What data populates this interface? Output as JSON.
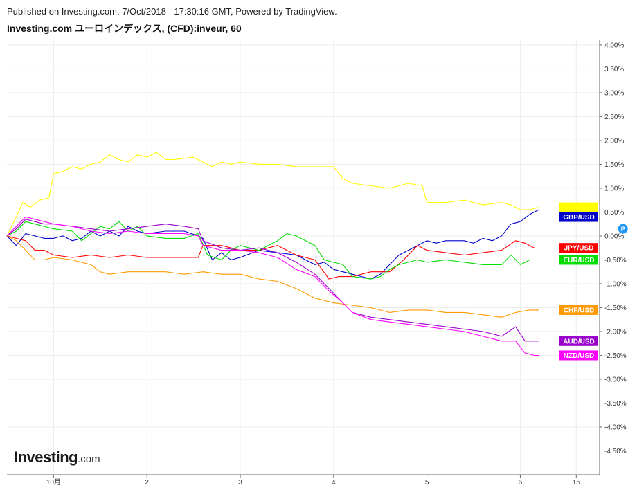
{
  "header": {
    "published": "Published on Investing.com, 7/Oct/2018 - 17:30:16 GMT, Powered by TradingView.",
    "title": "Investing.com ユーロインデックス, (CFD):inveur, 60"
  },
  "logo": {
    "main": "Investing",
    "suffix": ".com"
  },
  "marker": {
    "label": "P",
    "x": 6.1,
    "y": 0.15,
    "color": "#2196f3"
  },
  "chart_data": {
    "type": "line",
    "xlim": [
      -0.5,
      5.85
    ],
    "ylim": [
      -5.0,
      4.1
    ],
    "x_ticks": [
      {
        "value": 0,
        "label": "10月"
      },
      {
        "value": 1,
        "label": "2"
      },
      {
        "value": 2,
        "label": "3"
      },
      {
        "value": 3,
        "label": "4"
      },
      {
        "value": 4,
        "label": "5"
      },
      {
        "value": 5,
        "label": "6"
      },
      {
        "value": 5.6,
        "label": "15"
      }
    ],
    "y_ticks": [
      {
        "value": 4.0,
        "label": "4.00%"
      },
      {
        "value": 3.5,
        "label": "3.50%"
      },
      {
        "value": 3.0,
        "label": "3.00%"
      },
      {
        "value": 2.5,
        "label": "2.50%"
      },
      {
        "value": 2.0,
        "label": "2.00%"
      },
      {
        "value": 1.5,
        "label": "1.50%"
      },
      {
        "value": 1.0,
        "label": "1.00%"
      },
      {
        "value": 0.5,
        "label": "0.50%"
      },
      {
        "value": 0.0,
        "label": "0.00%"
      },
      {
        "value": -0.5,
        "label": "-0.50%"
      },
      {
        "value": -1.0,
        "label": "-1.00%"
      },
      {
        "value": -1.5,
        "label": "-1.50%"
      },
      {
        "value": -2.0,
        "label": "-2.00%"
      },
      {
        "value": -2.5,
        "label": "-2.50%"
      },
      {
        "value": -3.0,
        "label": "-3.00%"
      },
      {
        "value": -3.5,
        "label": "-3.50%"
      },
      {
        "value": -4.0,
        "label": "-4.00%"
      },
      {
        "value": -4.5,
        "label": "-4.50%"
      }
    ],
    "grid": true,
    "series": [
      {
        "name": "",
        "tag": "",
        "color": "#ffff00",
        "points": [
          [
            -0.5,
            0
          ],
          [
            -0.4,
            0.4
          ],
          [
            -0.33,
            0.7
          ],
          [
            -0.25,
            0.6
          ],
          [
            -0.15,
            0.75
          ],
          [
            -0.05,
            0.8
          ],
          [
            0,
            1.3
          ],
          [
            0.1,
            1.35
          ],
          [
            0.2,
            1.45
          ],
          [
            0.3,
            1.4
          ],
          [
            0.4,
            1.5
          ],
          [
            0.5,
            1.55
          ],
          [
            0.6,
            1.7
          ],
          [
            0.7,
            1.6
          ],
          [
            0.8,
            1.55
          ],
          [
            0.9,
            1.7
          ],
          [
            1.0,
            1.65
          ],
          [
            1.1,
            1.75
          ],
          [
            1.2,
            1.6
          ],
          [
            1.3,
            1.6
          ],
          [
            1.5,
            1.65
          ],
          [
            1.6,
            1.55
          ],
          [
            1.7,
            1.45
          ],
          [
            1.8,
            1.55
          ],
          [
            1.9,
            1.5
          ],
          [
            2.0,
            1.55
          ],
          [
            2.2,
            1.5
          ],
          [
            2.4,
            1.5
          ],
          [
            2.6,
            1.45
          ],
          [
            2.8,
            1.45
          ],
          [
            3.0,
            1.45
          ],
          [
            3.1,
            1.2
          ],
          [
            3.2,
            1.1
          ],
          [
            3.4,
            1.05
          ],
          [
            3.6,
            1.0
          ],
          [
            3.8,
            1.1
          ],
          [
            3.95,
            1.05
          ],
          [
            4.0,
            0.7
          ],
          [
            4.2,
            0.7
          ],
          [
            4.4,
            0.75
          ],
          [
            4.6,
            0.65
          ],
          [
            4.8,
            0.7
          ],
          [
            4.9,
            0.65
          ],
          [
            5.0,
            0.55
          ],
          [
            5.1,
            0.55
          ],
          [
            5.2,
            0.6
          ]
        ]
      },
      {
        "name": "GBP/USD",
        "tag": "GBP/USD",
        "color": "#0000cc",
        "points": [
          [
            -0.5,
            0
          ],
          [
            -0.4,
            -0.2
          ],
          [
            -0.3,
            0.05
          ],
          [
            -0.2,
            0.0
          ],
          [
            -0.1,
            -0.05
          ],
          [
            0,
            -0.05
          ],
          [
            0.1,
            0.0
          ],
          [
            0.2,
            -0.1
          ],
          [
            0.3,
            -0.05
          ],
          [
            0.4,
            0.1
          ],
          [
            0.5,
            0.0
          ],
          [
            0.6,
            0.1
          ],
          [
            0.7,
            0.0
          ],
          [
            0.8,
            0.2
          ],
          [
            0.9,
            0.1
          ],
          [
            1.0,
            0.05
          ],
          [
            1.2,
            0.1
          ],
          [
            1.4,
            0.1
          ],
          [
            1.55,
            0.0
          ],
          [
            1.6,
            -0.05
          ],
          [
            1.7,
            -0.5
          ],
          [
            1.8,
            -0.35
          ],
          [
            1.9,
            -0.5
          ],
          [
            2.0,
            -0.45
          ],
          [
            2.2,
            -0.3
          ],
          [
            2.4,
            -0.35
          ],
          [
            2.6,
            -0.4
          ],
          [
            2.8,
            -0.6
          ],
          [
            2.9,
            -0.55
          ],
          [
            3.0,
            -0.7
          ],
          [
            3.1,
            -0.75
          ],
          [
            3.2,
            -0.8
          ],
          [
            3.3,
            -0.85
          ],
          [
            3.4,
            -0.9
          ],
          [
            3.5,
            -0.8
          ],
          [
            3.6,
            -0.6
          ],
          [
            3.7,
            -0.4
          ],
          [
            3.8,
            -0.3
          ],
          [
            3.9,
            -0.2
          ],
          [
            4.0,
            -0.1
          ],
          [
            4.1,
            -0.15
          ],
          [
            4.2,
            -0.1
          ],
          [
            4.4,
            -0.1
          ],
          [
            4.5,
            -0.15
          ],
          [
            4.6,
            -0.05
          ],
          [
            4.7,
            -0.1
          ],
          [
            4.8,
            0.0
          ],
          [
            4.9,
            0.25
          ],
          [
            5.0,
            0.3
          ],
          [
            5.1,
            0.45
          ],
          [
            5.2,
            0.55
          ]
        ]
      },
      {
        "name": "JPY/USD",
        "tag": "JPY/USD",
        "color": "#ff0000",
        "points": [
          [
            -0.5,
            0
          ],
          [
            -0.4,
            -0.05
          ],
          [
            -0.3,
            -0.1
          ],
          [
            -0.2,
            -0.3
          ],
          [
            -0.1,
            -0.3
          ],
          [
            0,
            -0.4
          ],
          [
            0.2,
            -0.45
          ],
          [
            0.4,
            -0.4
          ],
          [
            0.6,
            -0.45
          ],
          [
            0.8,
            -0.4
          ],
          [
            1.0,
            -0.45
          ],
          [
            1.2,
            -0.45
          ],
          [
            1.4,
            -0.45
          ],
          [
            1.55,
            -0.45
          ],
          [
            1.6,
            -0.2
          ],
          [
            1.8,
            -0.2
          ],
          [
            2.0,
            -0.3
          ],
          [
            2.2,
            -0.3
          ],
          [
            2.4,
            -0.2
          ],
          [
            2.6,
            -0.4
          ],
          [
            2.8,
            -0.5
          ],
          [
            2.95,
            -0.9
          ],
          [
            3.05,
            -0.85
          ],
          [
            3.2,
            -0.85
          ],
          [
            3.4,
            -0.75
          ],
          [
            3.6,
            -0.75
          ],
          [
            3.75,
            -0.5
          ],
          [
            3.9,
            -0.2
          ],
          [
            4.0,
            -0.3
          ],
          [
            4.2,
            -0.35
          ],
          [
            4.4,
            -0.4
          ],
          [
            4.6,
            -0.35
          ],
          [
            4.8,
            -0.3
          ],
          [
            4.95,
            -0.1
          ],
          [
            5.05,
            -0.15
          ],
          [
            5.15,
            -0.25
          ]
        ]
      },
      {
        "name": "EUR/USD",
        "tag": "EUR/USD",
        "color": "#00dd00",
        "points": [
          [
            -0.5,
            0
          ],
          [
            -0.4,
            0.1
          ],
          [
            -0.3,
            0.3
          ],
          [
            -0.2,
            0.25
          ],
          [
            -0.1,
            0.2
          ],
          [
            0,
            0.15
          ],
          [
            0.2,
            0.1
          ],
          [
            0.3,
            -0.1
          ],
          [
            0.4,
            0.05
          ],
          [
            0.5,
            0.2
          ],
          [
            0.6,
            0.15
          ],
          [
            0.7,
            0.3
          ],
          [
            0.8,
            0.1
          ],
          [
            0.9,
            0.2
          ],
          [
            1.0,
            0.0
          ],
          [
            1.2,
            -0.05
          ],
          [
            1.4,
            -0.05
          ],
          [
            1.55,
            0.05
          ],
          [
            1.65,
            -0.4
          ],
          [
            1.8,
            -0.5
          ],
          [
            1.9,
            -0.3
          ],
          [
            2.0,
            -0.2
          ],
          [
            2.2,
            -0.3
          ],
          [
            2.4,
            -0.1
          ],
          [
            2.5,
            0.05
          ],
          [
            2.6,
            0.0
          ],
          [
            2.8,
            -0.2
          ],
          [
            2.9,
            -0.5
          ],
          [
            3.0,
            -0.55
          ],
          [
            3.1,
            -0.6
          ],
          [
            3.2,
            -0.85
          ],
          [
            3.4,
            -0.9
          ],
          [
            3.5,
            -0.85
          ],
          [
            3.6,
            -0.7
          ],
          [
            3.7,
            -0.6
          ],
          [
            3.8,
            -0.55
          ],
          [
            3.9,
            -0.5
          ],
          [
            4.0,
            -0.55
          ],
          [
            4.2,
            -0.5
          ],
          [
            4.4,
            -0.55
          ],
          [
            4.6,
            -0.6
          ],
          [
            4.8,
            -0.6
          ],
          [
            4.9,
            -0.4
          ],
          [
            5.0,
            -0.6
          ],
          [
            5.1,
            -0.5
          ],
          [
            5.2,
            -0.5
          ]
        ]
      },
      {
        "name": "CHF/USD",
        "tag": "CHF/USD",
        "color": "#ff9900",
        "points": [
          [
            -0.5,
            0
          ],
          [
            -0.4,
            -0.1
          ],
          [
            -0.3,
            -0.3
          ],
          [
            -0.2,
            -0.5
          ],
          [
            -0.1,
            -0.5
          ],
          [
            0,
            -0.45
          ],
          [
            0.2,
            -0.5
          ],
          [
            0.4,
            -0.6
          ],
          [
            0.5,
            -0.75
          ],
          [
            0.6,
            -0.8
          ],
          [
            0.8,
            -0.75
          ],
          [
            1.0,
            -0.75
          ],
          [
            1.2,
            -0.75
          ],
          [
            1.4,
            -0.8
          ],
          [
            1.6,
            -0.75
          ],
          [
            1.8,
            -0.8
          ],
          [
            2.0,
            -0.8
          ],
          [
            2.2,
            -0.9
          ],
          [
            2.4,
            -0.95
          ],
          [
            2.6,
            -1.1
          ],
          [
            2.8,
            -1.3
          ],
          [
            3.0,
            -1.4
          ],
          [
            3.2,
            -1.45
          ],
          [
            3.4,
            -1.5
          ],
          [
            3.6,
            -1.6
          ],
          [
            3.8,
            -1.55
          ],
          [
            4.0,
            -1.55
          ],
          [
            4.2,
            -1.6
          ],
          [
            4.4,
            -1.6
          ],
          [
            4.6,
            -1.65
          ],
          [
            4.8,
            -1.7
          ],
          [
            4.95,
            -1.6
          ],
          [
            5.1,
            -1.55
          ],
          [
            5.2,
            -1.55
          ]
        ]
      },
      {
        "name": "AUD/USD",
        "tag": "AUD/USD",
        "color": "#9900cc",
        "points": [
          [
            -0.5,
            0
          ],
          [
            -0.4,
            0.15
          ],
          [
            -0.3,
            0.35
          ],
          [
            -0.2,
            0.3
          ],
          [
            -0.1,
            0.25
          ],
          [
            0,
            0.25
          ],
          [
            0.2,
            0.2
          ],
          [
            0.4,
            0.15
          ],
          [
            0.6,
            0.1
          ],
          [
            0.8,
            0.15
          ],
          [
            1.0,
            0.2
          ],
          [
            1.2,
            0.25
          ],
          [
            1.4,
            0.2
          ],
          [
            1.55,
            0.15
          ],
          [
            1.6,
            -0.1
          ],
          [
            1.8,
            -0.25
          ],
          [
            2.0,
            -0.3
          ],
          [
            2.2,
            -0.25
          ],
          [
            2.4,
            -0.35
          ],
          [
            2.6,
            -0.55
          ],
          [
            2.8,
            -0.8
          ],
          [
            2.95,
            -1.1
          ],
          [
            3.1,
            -1.4
          ],
          [
            3.2,
            -1.6
          ],
          [
            3.4,
            -1.7
          ],
          [
            3.6,
            -1.75
          ],
          [
            3.8,
            -1.8
          ],
          [
            4.0,
            -1.85
          ],
          [
            4.2,
            -1.9
          ],
          [
            4.4,
            -1.95
          ],
          [
            4.6,
            -2.0
          ],
          [
            4.8,
            -2.1
          ],
          [
            4.95,
            -1.9
          ],
          [
            5.05,
            -2.2
          ],
          [
            5.15,
            -2.2
          ],
          [
            5.2,
            -2.2
          ]
        ]
      },
      {
        "name": "NZD/USD",
        "tag": "NZD/USD",
        "color": "#ff00ff",
        "points": [
          [
            -0.5,
            0
          ],
          [
            -0.4,
            0.2
          ],
          [
            -0.3,
            0.4
          ],
          [
            -0.2,
            0.35
          ],
          [
            -0.1,
            0.3
          ],
          [
            0,
            0.25
          ],
          [
            0.2,
            0.2
          ],
          [
            0.4,
            0.1
          ],
          [
            0.6,
            0.05
          ],
          [
            0.8,
            0.1
          ],
          [
            1.0,
            0.05
          ],
          [
            1.2,
            0.05
          ],
          [
            1.4,
            0.05
          ],
          [
            1.55,
            0.0
          ],
          [
            1.6,
            -0.2
          ],
          [
            1.8,
            -0.3
          ],
          [
            2.0,
            -0.3
          ],
          [
            2.2,
            -0.35
          ],
          [
            2.4,
            -0.45
          ],
          [
            2.6,
            -0.7
          ],
          [
            2.8,
            -0.85
          ],
          [
            2.95,
            -1.15
          ],
          [
            3.1,
            -1.4
          ],
          [
            3.2,
            -1.6
          ],
          [
            3.4,
            -1.75
          ],
          [
            3.6,
            -1.8
          ],
          [
            3.8,
            -1.85
          ],
          [
            4.0,
            -1.9
          ],
          [
            4.2,
            -1.95
          ],
          [
            4.4,
            -2.0
          ],
          [
            4.6,
            -2.1
          ],
          [
            4.8,
            -2.2
          ],
          [
            4.95,
            -2.2
          ],
          [
            5.05,
            -2.45
          ],
          [
            5.15,
            -2.5
          ],
          [
            5.2,
            -2.5
          ]
        ]
      }
    ]
  }
}
